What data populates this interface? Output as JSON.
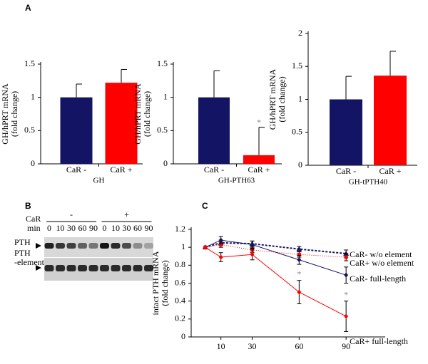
{
  "chart_data": [
    {
      "type": "bar",
      "panel": "A",
      "ylabel": [
        "GH/hPRT mRNA",
        "(fold change)"
      ],
      "xlabel": "GH",
      "categories": [
        "CaR -",
        "CaR +"
      ],
      "values": [
        1,
        1.22
      ],
      "errors": [
        0.2,
        0.2
      ],
      "colors": [
        "#141464",
        "#ff0000"
      ],
      "ylim": [
        0,
        1.5
      ],
      "yticks": [
        0,
        0.5,
        1,
        1.5
      ]
    },
    {
      "type": "bar",
      "ylabel": [
        "GH/hPRT mRNA",
        "(fold change)"
      ],
      "xlabel": "GH-PTH63",
      "categories": [
        "CaR -",
        "CaR +"
      ],
      "values": [
        1,
        0.13
      ],
      "errors": [
        0.4,
        0.42
      ],
      "value_annotations": [
        null,
        "*"
      ],
      "colors": [
        "#141464",
        "#ff0000"
      ],
      "ylim": [
        0,
        1.5
      ],
      "yticks": [
        0,
        0.5,
        1,
        1.5
      ]
    },
    {
      "type": "bar",
      "ylabel": [
        "GH/hPRT mRNA",
        "(fold change)"
      ],
      "xlabel": "GH-tPTH40",
      "categories": [
        "CaR -",
        "CaR +"
      ],
      "values": [
        1,
        1.36
      ],
      "errors": [
        0.35,
        0.37
      ],
      "colors": [
        "#141464",
        "#ff0000"
      ],
      "ylim": [
        0,
        2
      ],
      "yticks": [
        0,
        0.5,
        1,
        1.5,
        2
      ]
    },
    {
      "type": "line",
      "panel": "C",
      "ylabel": [
        "intact PTH mRNA",
        "(fold change)"
      ],
      "x": [
        0,
        10,
        30,
        60,
        90
      ],
      "xlim": [
        -9,
        115
      ],
      "xticks": [
        10,
        30,
        60,
        90
      ],
      "ylim": [
        0,
        1.2
      ],
      "yticks": [
        0,
        0.2,
        0.4,
        0.6,
        0.8,
        1,
        1.2
      ],
      "series": [
        {
          "name": "CaR- w/o element",
          "color": "#141464",
          "dash": "3,2",
          "marker": "triangle",
          "values": [
            1,
            1.05,
            1.04,
            0.98,
            0.93
          ],
          "errors": [
            0,
            0.03,
            0.03,
            0.03,
            0.04
          ]
        },
        {
          "name": "CaR+ w/o element",
          "color": "#ff0000",
          "dash": "1,2",
          "marker": "square",
          "values": [
            1,
            1.03,
            0.97,
            0.92,
            0.89
          ],
          "errors": [
            0,
            0.03,
            0.03,
            0.03,
            0.04
          ]
        },
        {
          "name": "CaR- full-length",
          "color": "#141464",
          "dash": "",
          "marker": "diamond",
          "values": [
            1,
            1.08,
            1.03,
            0.86,
            0.69
          ],
          "errors": [
            0,
            0.04,
            0.04,
            0.05,
            0.09
          ]
        },
        {
          "name": "CaR+ full-length",
          "color": "#ff0000",
          "dash": "",
          "marker": "diamond",
          "values": [
            1,
            0.89,
            0.92,
            0.5,
            0.23
          ],
          "errors": [
            0,
            0.05,
            0.06,
            0.13,
            0.17
          ],
          "value_annotations": [
            null,
            null,
            null,
            "*",
            "*"
          ]
        }
      ]
    }
  ],
  "blot": {
    "panel": "B",
    "treatment_label": "CaR",
    "time_label": "min",
    "groups": [
      "-",
      "+"
    ],
    "lanes": [
      "0",
      "10",
      "30",
      "60",
      "90",
      "0",
      "10",
      "30",
      "60",
      "90"
    ],
    "rows": [
      [
        "PTH"
      ],
      [
        "PTH",
        "-element"
      ]
    ]
  }
}
